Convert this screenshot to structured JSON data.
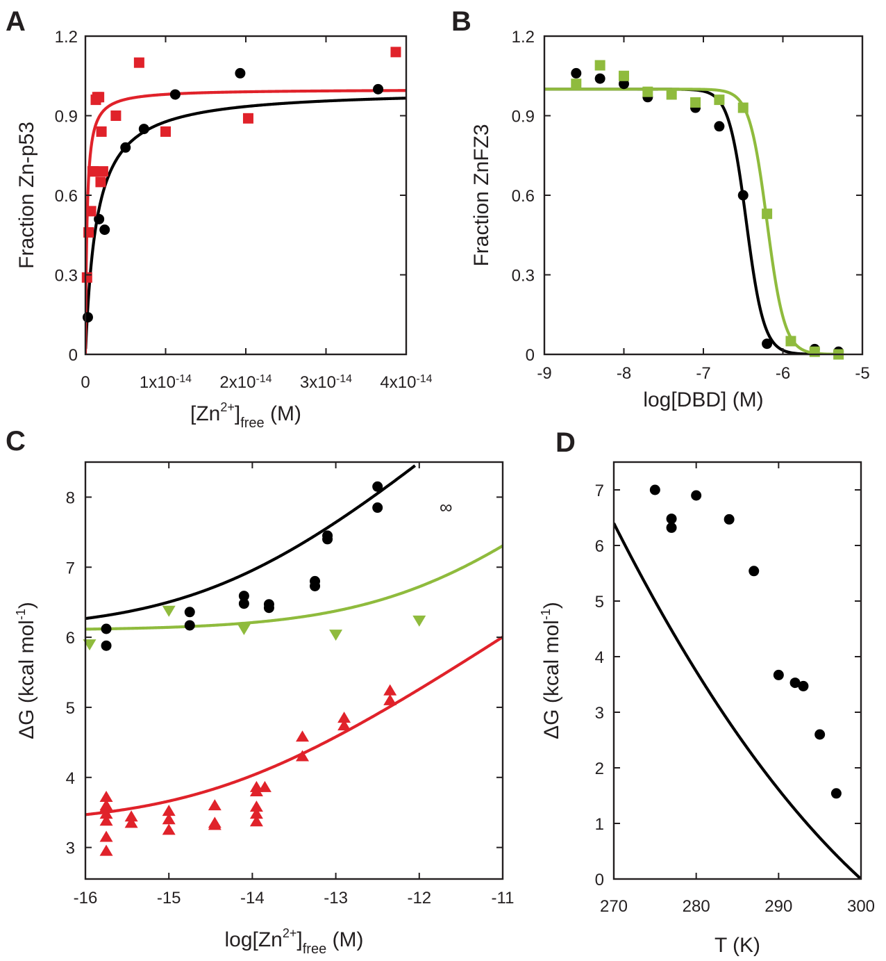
{
  "colors": {
    "black": "#000000",
    "red": "#e0222a",
    "green": "#8fbb3d",
    "axis": "#231f20"
  },
  "chart_data": [
    {
      "panel": "A",
      "type": "scatter",
      "xlabel": {
        "main": "[Zn",
        "sup": "2+",
        "close": "]",
        "sub": "free",
        "unit": " (M)"
      },
      "ylabel": "Fraction Zn-p53",
      "xlim": [
        0,
        4e-14
      ],
      "ylim": [
        0,
        1.2
      ],
      "xticks": [
        {
          "v": 0,
          "base": "0",
          "exp": ""
        },
        {
          "v": 1e-14,
          "base": "1x10",
          "exp": "-14"
        },
        {
          "v": 2e-14,
          "base": "2x10",
          "exp": "-14"
        },
        {
          "v": 3e-14,
          "base": "3x10",
          "exp": "-14"
        },
        {
          "v": 4e-14,
          "base": "4x10",
          "exp": "-14"
        }
      ],
      "yticks": [
        {
          "v": 0,
          "label": "0"
        },
        {
          "v": 0.3,
          "label": "0.3"
        },
        {
          "v": 0.6,
          "label": "0.6"
        },
        {
          "v": 0.9,
          "label": "0.9"
        },
        {
          "v": 1.2,
          "label": "1.2"
        }
      ],
      "series": [
        {
          "name": "black circles",
          "color": "#000000",
          "marker": "circle",
          "x": [
            3e-16,
            1.7e-15,
            2.4e-15,
            5e-15,
            7.3e-15,
            1.12e-14,
            1.93e-14,
            3.65e-14
          ],
          "y": [
            0.14,
            0.51,
            0.47,
            0.78,
            0.85,
            0.98,
            1.06,
            1.0
          ],
          "fit": {
            "model": "hyperbola",
            "Kd": 1.4e-15,
            "top": 1.0,
            "from": 3e-17,
            "to": 4e-14
          }
        },
        {
          "name": "red squares",
          "color": "#e0222a",
          "marker": "square",
          "x": [
            2e-16,
            4e-16,
            7e-16,
            9e-16,
            1e-15,
            1.3e-15,
            1.5e-15,
            1.7e-15,
            1.9e-15,
            2e-15,
            2.2e-15,
            3.8e-15,
            6.7e-15,
            1e-14,
            2.03e-14,
            3.87e-14
          ],
          "y": [
            0.29,
            0.46,
            0.54,
            0.69,
            0.69,
            0.96,
            0.97,
            0.97,
            0.65,
            0.84,
            0.69,
            0.9,
            1.1,
            0.84,
            0.89,
            1.14
          ],
          "fit": {
            "model": "hyperbola",
            "Kd": 2e-16,
            "top": 1.0,
            "from": 0.0,
            "to": 4e-14
          }
        }
      ]
    },
    {
      "panel": "B",
      "type": "scatter",
      "xlabel": "log[DBD] (M)",
      "ylabel": "Fraction ZnFZ3",
      "xlim": [
        -9,
        -5
      ],
      "ylim": [
        0,
        1.2
      ],
      "xticks": [
        {
          "v": -9,
          "label": "-9"
        },
        {
          "v": -8,
          "label": "-8"
        },
        {
          "v": -7,
          "label": "-7"
        },
        {
          "v": -6,
          "label": "-6"
        },
        {
          "v": -5,
          "label": "-5"
        }
      ],
      "yticks": [
        {
          "v": 0,
          "label": "0"
        },
        {
          "v": 0.3,
          "label": "0.3"
        },
        {
          "v": 0.6,
          "label": "0.6"
        },
        {
          "v": 0.9,
          "label": "0.9"
        },
        {
          "v": 1.2,
          "label": "1.2"
        }
      ],
      "series": [
        {
          "name": "black circles",
          "color": "#000000",
          "marker": "circle",
          "x": [
            -8.6,
            -8.3,
            -8.0,
            -7.7,
            -7.1,
            -6.8,
            -6.5,
            -6.2,
            -5.6,
            -5.3
          ],
          "y": [
            1.06,
            1.04,
            1.02,
            0.97,
            0.93,
            0.86,
            0.6,
            0.04,
            0.02,
            0.01
          ],
          "fit": {
            "model": "sigmoid",
            "mid": -6.46,
            "k": 9.0,
            "top": 1.0,
            "from": -9,
            "to": -5.3
          }
        },
        {
          "name": "green squares",
          "color": "#8fbb3d",
          "marker": "square",
          "x": [
            -8.6,
            -8.3,
            -8.0,
            -7.7,
            -7.4,
            -7.1,
            -6.8,
            -6.5,
            -6.2,
            -5.9,
            -5.6,
            -5.3
          ],
          "y": [
            1.02,
            1.09,
            1.05,
            0.99,
            0.98,
            0.95,
            0.96,
            0.93,
            0.53,
            0.05,
            0.01,
            0.0
          ],
          "fit": {
            "model": "sigmoid",
            "mid": -6.2,
            "k": 9.0,
            "top": 1.0,
            "from": -9,
            "to": -5.3
          }
        }
      ]
    },
    {
      "panel": "C",
      "type": "scatter",
      "xlabel": {
        "main": "log[Zn",
        "sup": "2+",
        "close": "]",
        "sub": "free",
        "unit": " (M)"
      },
      "ylabel": "ΔG (kcal mol",
      "ylabel_sup": "-1",
      "ylabel_close": ")",
      "xlim": [
        -16,
        -11
      ],
      "ylim": [
        2.55,
        8.5
      ],
      "xticks": [
        {
          "v": -16,
          "label": "-16"
        },
        {
          "v": -15,
          "label": "-15"
        },
        {
          "v": -14,
          "label": "-14"
        },
        {
          "v": -13,
          "label": "-13"
        },
        {
          "v": -12,
          "label": "-12"
        },
        {
          "v": -11,
          "label": "-11"
        }
      ],
      "yticks": [
        {
          "v": 3,
          "label": "3"
        },
        {
          "v": 4,
          "label": "4"
        },
        {
          "v": 5,
          "label": "5"
        },
        {
          "v": 6,
          "label": "6"
        },
        {
          "v": 7,
          "label": "7"
        },
        {
          "v": 8,
          "label": "8"
        }
      ],
      "annotation": {
        "text": "∞",
        "x": -11.68,
        "y": 7.85
      },
      "series": [
        {
          "name": "black circles",
          "color": "#000000",
          "marker": "circle",
          "x": [
            -15.75,
            -15.75,
            -14.75,
            -14.75,
            -14.1,
            -14.1,
            -13.8,
            -13.8,
            -13.25,
            -13.25,
            -13.1,
            -13.1,
            -12.5,
            -12.5
          ],
          "y": [
            6.12,
            5.88,
            6.36,
            6.17,
            6.59,
            6.48,
            6.47,
            6.42,
            6.8,
            6.73,
            7.45,
            7.4,
            8.15,
            7.85
          ],
          "fit": {
            "model": "softplus",
            "base": 6.1,
            "slope": 1.0,
            "x0": -14.3,
            "from": -16,
            "to": -12.05
          }
        },
        {
          "name": "green down-triangles",
          "color": "#8fbb3d",
          "marker": "tri-down",
          "x": [
            -15.95,
            -15.0,
            -14.1,
            -13.0,
            -12.0
          ],
          "y": [
            5.9,
            6.38,
            6.12,
            6.04,
            6.24
          ],
          "fit": {
            "model": "softplus",
            "base": 6.1,
            "slope": 1.0,
            "x0": -11.85,
            "from": -16,
            "to": -11
          }
        },
        {
          "name": "red up-triangles",
          "color": "#e0222a",
          "marker": "tri-up",
          "x": [
            -15.75,
            -15.75,
            -15.75,
            -15.75,
            -15.75,
            -15.75,
            -15.75,
            -15.45,
            -15.45,
            -15.0,
            -15.0,
            -15.0,
            -14.45,
            -14.45,
            -14.45,
            -13.95,
            -13.95,
            -13.95,
            -13.95,
            -13.95,
            -13.85,
            -13.4,
            -13.4,
            -12.9,
            -12.9,
            -12.35,
            -12.35
          ],
          "y": [
            3.72,
            3.6,
            3.48,
            3.38,
            3.15,
            2.95,
            3.58,
            3.44,
            3.35,
            3.52,
            3.4,
            3.25,
            3.6,
            3.35,
            3.32,
            3.86,
            3.58,
            3.48,
            3.37,
            3.8,
            3.86,
            4.58,
            4.3,
            4.85,
            4.74,
            5.24,
            5.1
          ],
          "fit": {
            "model": "softplus",
            "base": 3.33,
            "slope": 0.79,
            "x0": -14.35,
            "from": -16,
            "to": -11
          }
        }
      ]
    },
    {
      "panel": "D",
      "type": "scatter",
      "xlabel": "T (K)",
      "ylabel": "ΔG (kcal mol",
      "ylabel_sup": "-1",
      "ylabel_close": ")",
      "xlim": [
        270,
        300
      ],
      "ylim": [
        0,
        7.5
      ],
      "xticks": [
        {
          "v": 270,
          "label": "270"
        },
        {
          "v": 280,
          "label": "280"
        },
        {
          "v": 290,
          "label": "290"
        },
        {
          "v": 300,
          "label": "300"
        }
      ],
      "yticks": [
        {
          "v": 0,
          "label": "0"
        },
        {
          "v": 1,
          "label": "1"
        },
        {
          "v": 2,
          "label": "2"
        },
        {
          "v": 3,
          "label": "3"
        },
        {
          "v": 4,
          "label": "4"
        },
        {
          "v": 5,
          "label": "5"
        },
        {
          "v": 6,
          "label": "6"
        },
        {
          "v": 7,
          "label": "7"
        }
      ],
      "series": [
        {
          "name": "black circles",
          "color": "#000000",
          "marker": "circle",
          "x": [
            275,
            277,
            277,
            280,
            284,
            287,
            290,
            292,
            293,
            295,
            297
          ],
          "y": [
            7.0,
            6.48,
            6.32,
            6.9,
            6.47,
            5.54,
            3.67,
            3.53,
            3.47,
            2.6,
            1.54
          ],
          "fit": {
            "model": "gibbs",
            "Tm": 300,
            "dH": 40.71,
            "dCp": -1.5,
            "from": 270,
            "to": 300
          }
        }
      ]
    }
  ],
  "panels": {
    "A": "A",
    "B": "B",
    "C": "C",
    "D": "D"
  }
}
